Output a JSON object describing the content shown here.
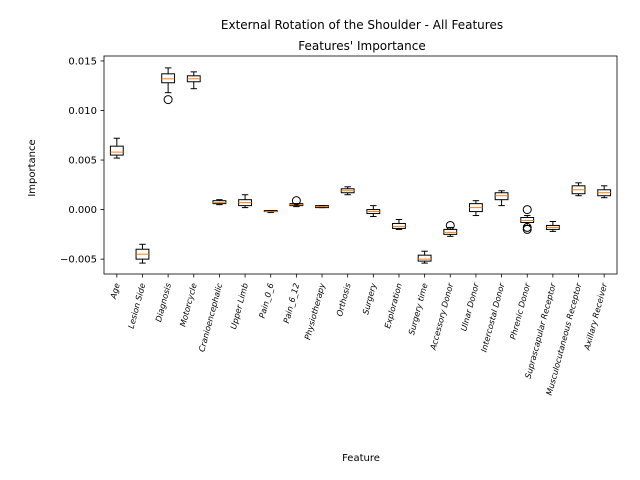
{
  "chart_data": {
    "type": "box",
    "title": "External Rotation of the Shoulder - All Features",
    "subtitle": "Features' Importance",
    "xlabel": "Feature",
    "ylabel": "Importance",
    "ylim": [
      -0.0065,
      0.0155
    ],
    "yticks": [
      -0.005,
      0.0,
      0.005,
      0.01,
      0.015
    ],
    "ytick_labels": [
      "−0.005",
      "0.000",
      "0.005",
      "0.010",
      "0.015"
    ],
    "box_color": "#000000",
    "median_color": "#ff7f0e",
    "categories": [
      "Age",
      "Lesion Side",
      "Diagnosis",
      "Motorcycle",
      "Cranioencephalic",
      "Upper Limb",
      "Pain_0_6",
      "Pain_6_12",
      "Physiotherapy",
      "Orthosis",
      "Surgery",
      "Exploration",
      "Surgery time",
      "Accessory Donor",
      "Ulnar Donor",
      "Intercostal Donor",
      "Phrenic Donor",
      "Suprascapular Receptor",
      "Musculocutaneous Receptor",
      "Axillary Receiver"
    ],
    "boxes": [
      {
        "whislo": 0.0052,
        "q1": 0.0055,
        "med": 0.0058,
        "q3": 0.0064,
        "whishi": 0.0072,
        "fliers": []
      },
      {
        "whislo": -0.0054,
        "q1": -0.005,
        "med": -0.0045,
        "q3": -0.004,
        "whishi": -0.0035,
        "fliers": []
      },
      {
        "whislo": 0.0118,
        "q1": 0.0128,
        "med": 0.0132,
        "q3": 0.0137,
        "whishi": 0.0143,
        "fliers": [
          0.0111
        ]
      },
      {
        "whislo": 0.0122,
        "q1": 0.0129,
        "med": 0.0132,
        "q3": 0.0135,
        "whishi": 0.0139,
        "fliers": []
      },
      {
        "whislo": 0.0005,
        "q1": 0.0006,
        "med": 0.0007,
        "q3": 0.0009,
        "whishi": 0.001,
        "fliers": []
      },
      {
        "whislo": 0.0002,
        "q1": 0.0004,
        "med": 0.0007,
        "q3": 0.001,
        "whishi": 0.0015,
        "fliers": []
      },
      {
        "whislo": -0.0003,
        "q1": -0.0002,
        "med": -0.0002,
        "q3": -0.0001,
        "whishi": -0.0001,
        "fliers": []
      },
      {
        "whislo": 0.0003,
        "q1": 0.0004,
        "med": 0.0005,
        "q3": 0.0006,
        "whishi": 0.0006,
        "fliers": [
          0.0009
        ]
      },
      {
        "whislo": 0.0002,
        "q1": 0.0002,
        "med": 0.0003,
        "q3": 0.0004,
        "whishi": 0.0004,
        "fliers": []
      },
      {
        "whislo": 0.0015,
        "q1": 0.0017,
        "med": 0.0019,
        "q3": 0.0021,
        "whishi": 0.0023,
        "fliers": []
      },
      {
        "whislo": -0.0007,
        "q1": -0.0004,
        "med": -0.0002,
        "q3": 0.0,
        "whishi": 0.0004,
        "fliers": []
      },
      {
        "whislo": -0.002,
        "q1": -0.0019,
        "med": -0.0017,
        "q3": -0.0014,
        "whishi": -0.001,
        "fliers": []
      },
      {
        "whislo": -0.0054,
        "q1": -0.0052,
        "med": -0.005,
        "q3": -0.0046,
        "whishi": -0.0042,
        "fliers": []
      },
      {
        "whislo": -0.0027,
        "q1": -0.0025,
        "med": -0.0023,
        "q3": -0.002,
        "whishi": -0.0018,
        "fliers": [
          -0.0016
        ]
      },
      {
        "whislo": -0.0006,
        "q1": -0.0002,
        "med": 0.0002,
        "q3": 0.0006,
        "whishi": 0.0009,
        "fliers": []
      },
      {
        "whislo": 0.0004,
        "q1": 0.001,
        "med": 0.0014,
        "q3": 0.0017,
        "whishi": 0.0019,
        "fliers": []
      },
      {
        "whislo": -0.0016,
        "q1": -0.0013,
        "med": -0.0011,
        "q3": -0.0008,
        "whishi": -0.0006,
        "fliers": [
          0.0,
          -0.0018,
          -0.002
        ]
      },
      {
        "whislo": -0.0022,
        "q1": -0.002,
        "med": -0.0018,
        "q3": -0.0016,
        "whishi": -0.0012,
        "fliers": []
      },
      {
        "whislo": 0.0014,
        "q1": 0.0016,
        "med": 0.002,
        "q3": 0.0024,
        "whishi": 0.0027,
        "fliers": []
      },
      {
        "whislo": 0.0012,
        "q1": 0.0014,
        "med": 0.0017,
        "q3": 0.002,
        "whishi": 0.0024,
        "fliers": []
      }
    ]
  }
}
